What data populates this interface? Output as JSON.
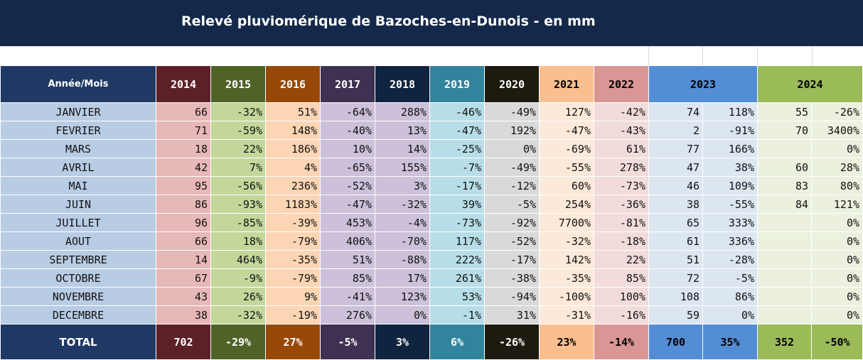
{
  "title": "Relevé pluviomérique de Bazoches-en-Dunois - en mm",
  "header": {
    "label": "Année/Mois",
    "years": [
      "2014",
      "2015",
      "2016",
      "2017",
      "2018",
      "2019",
      "2020",
      "2021",
      "2022"
    ],
    "y2023": "2023",
    "y2024": "2024"
  },
  "months": [
    {
      "name": "JANVIER",
      "cells": [
        "66",
        "-32%",
        "51%",
        "-64%",
        "288%",
        "-46%",
        "-49%",
        "127%",
        "-42%",
        "74",
        "118%",
        "55",
        "-26%"
      ]
    },
    {
      "name": "FEVRIER",
      "cells": [
        "71",
        "-59%",
        "148%",
        "-40%",
        "13%",
        "-47%",
        "192%",
        "-47%",
        "-43%",
        "2",
        "-91%",
        "70",
        "3400%"
      ]
    },
    {
      "name": "MARS",
      "cells": [
        "18",
        "22%",
        "186%",
        "10%",
        "14%",
        "-25%",
        "0%",
        "-69%",
        "61%",
        "77",
        "166%",
        "",
        "0%"
      ]
    },
    {
      "name": "AVRIL",
      "cells": [
        "42",
        "7%",
        "4%",
        "-65%",
        "155%",
        "-7%",
        "-49%",
        "-55%",
        "278%",
        "47",
        "38%",
        "60",
        "28%"
      ]
    },
    {
      "name": "MAI",
      "cells": [
        "95",
        "-56%",
        "236%",
        "-52%",
        "3%",
        "-17%",
        "-12%",
        "60%",
        "-73%",
        "46",
        "109%",
        "83",
        "80%"
      ]
    },
    {
      "name": "JUIN",
      "cells": [
        "86",
        "-93%",
        "1183%",
        "-47%",
        "-32%",
        "39%",
        "-5%",
        "254%",
        "-36%",
        "38",
        "-55%",
        "84",
        "121%"
      ]
    },
    {
      "name": "JUILLET",
      "cells": [
        "96",
        "-85%",
        "-39%",
        "453%",
        "-4%",
        "-73%",
        "-92%",
        "7700%",
        "-81%",
        "65",
        "333%",
        "",
        "0%"
      ]
    },
    {
      "name": "AOUT",
      "cells": [
        "66",
        "18%",
        "-79%",
        "406%",
        "-70%",
        "117%",
        "-52%",
        "-32%",
        "-18%",
        "61",
        "336%",
        "",
        "0%"
      ]
    },
    {
      "name": "SEPTEMBRE",
      "cells": [
        "14",
        "464%",
        "-35%",
        "51%",
        "-88%",
        "222%",
        "-17%",
        "142%",
        "22%",
        "51",
        "-28%",
        "",
        "0%"
      ]
    },
    {
      "name": "OCTOBRE",
      "cells": [
        "67",
        "-9%",
        "-79%",
        "85%",
        "17%",
        "261%",
        "-38%",
        "-35%",
        "85%",
        "72",
        "-5%",
        "",
        "0%"
      ]
    },
    {
      "name": "NOVEMBRE",
      "cells": [
        "43",
        "26%",
        "9%",
        "-41%",
        "123%",
        "53%",
        "-94%",
        "-100%",
        "100%",
        "108",
        "86%",
        "",
        "0%"
      ]
    },
    {
      "name": "DECEMBRE",
      "cells": [
        "38",
        "-32%",
        "-19%",
        "276%",
        "0%",
        "-1%",
        "31%",
        "-31%",
        "-16%",
        "59",
        "0%",
        "",
        "0%"
      ]
    }
  ],
  "total": {
    "label": "TOTAL",
    "cells": [
      "702",
      "-29%",
      "27%",
      "-5%",
      "3%",
      "6%",
      "-26%",
      "23%",
      "-14%",
      "700",
      "35%",
      "352",
      "-50%"
    ]
  },
  "colors": {
    "title_bg": "#14284a",
    "header": [
      "#5c2126",
      "#4f6228",
      "#974806",
      "#3f3151",
      "#0f243e",
      "#31849b",
      "#1d1b10",
      "#fabf8f",
      "#d99694",
      "#538dd5",
      "#9bbb59"
    ],
    "header_text": [
      "#ffffff",
      "#ffffff",
      "#ffffff",
      "#ffffff",
      "#ffffff",
      "#ffffff",
      "#ffffff",
      "#000000",
      "#000000",
      "#000000",
      "#000000"
    ],
    "body": [
      "#e6b8b7",
      "#c4d79b",
      "#fcd5b4",
      "#ccc0da",
      "#ccc0da",
      "#b7dee8",
      "#d9d9d9",
      "#fde9d9",
      "#f2dcdb",
      "#dce6f1",
      "#ebf1de"
    ],
    "total_text": [
      "#ffffff",
      "#ffffff",
      "#ffffff",
      "#ffffff",
      "#ffffff",
      "#ffffff",
      "#ffffff",
      "#000000",
      "#000000",
      "#000000",
      "#000000"
    ],
    "label_header": "#1f3864",
    "label_body": "#b8cce4"
  }
}
